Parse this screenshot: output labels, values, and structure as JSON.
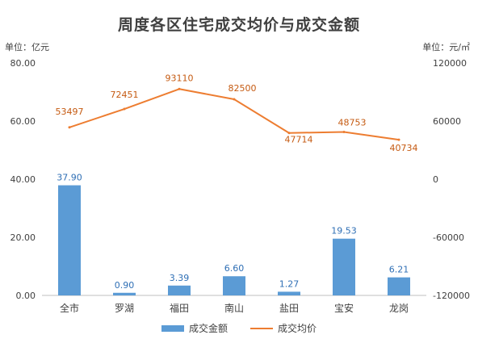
{
  "chart_data": {
    "type": "bar",
    "title": "周度各区住宅成交均价与成交金额",
    "left_unit": "单位：亿元",
    "right_unit": "单位：元/㎡",
    "categories": [
      "全市",
      "罗湖",
      "福田",
      "南山",
      "盐田",
      "宝安",
      "龙岗"
    ],
    "series": [
      {
        "name": "成交金额",
        "type": "bar",
        "axis": "left",
        "values": [
          37.9,
          0.9,
          3.39,
          6.6,
          1.27,
          19.53,
          6.21
        ],
        "labels": [
          "37.90",
          "0.90",
          "3.39",
          "6.60",
          "1.27",
          "19.53",
          "6.21"
        ],
        "color": "#5b9bd5"
      },
      {
        "name": "成交均价",
        "type": "line",
        "axis": "right",
        "values": [
          53497,
          72451,
          93110,
          82500,
          47714,
          48753,
          40734
        ],
        "labels": [
          "53497",
          "72451",
          "93110",
          "82500",
          "47714",
          "48753",
          "40734"
        ],
        "color": "#ed7d31"
      }
    ],
    "left_axis": {
      "ylim": [
        0,
        80
      ],
      "ticks": [
        0,
        20,
        40,
        60,
        80
      ],
      "tick_labels": [
        "0.00",
        "20.00",
        "40.00",
        "60.00",
        "80.00"
      ]
    },
    "right_axis": {
      "ylim": [
        -120000,
        120000
      ],
      "ticks": [
        -120000,
        -60000,
        0,
        60000,
        120000
      ],
      "tick_labels": [
        "-120000",
        "-60000",
        "0",
        "60000",
        "120000"
      ]
    },
    "grid": false,
    "legend_position": "bottom",
    "bar_label_color": "#2f6fb5",
    "line_label_color": "#c55a11"
  }
}
